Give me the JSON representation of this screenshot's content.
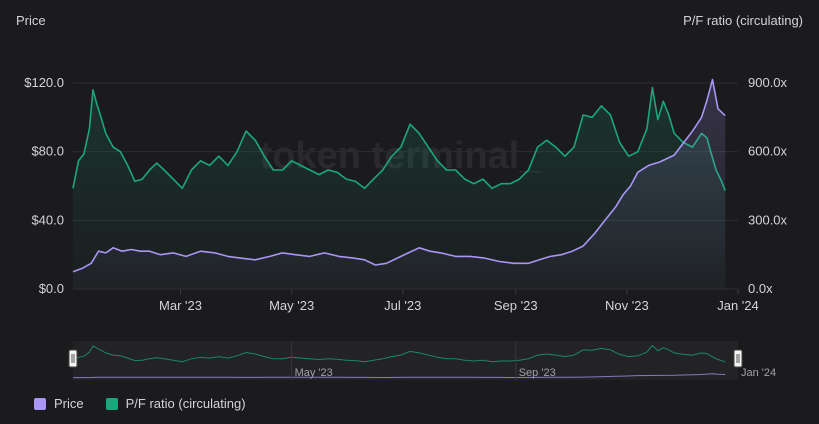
{
  "chart_data": {
    "type": "line",
    "watermark": "token terminal_",
    "y_left": {
      "title": "Price",
      "ticks": [
        "$0.0",
        "$40.0",
        "$80.0",
        "$120.0"
      ],
      "tick_values": [
        0,
        40,
        80,
        120
      ],
      "range": [
        0,
        120
      ]
    },
    "y_right": {
      "title": "P/F ratio (circulating)",
      "ticks": [
        "0.0x",
        "300.0x",
        "600.0x",
        "900.0x"
      ],
      "tick_values": [
        0,
        300,
        600,
        900
      ],
      "range": [
        0,
        900
      ]
    },
    "x_ticks": [
      "Mar '23",
      "May '23",
      "Jul '23",
      "Sep '23",
      "Nov '23",
      "Jan '24"
    ],
    "x_tick_days": [
      59,
      120,
      181,
      243,
      304,
      365
    ],
    "x_range_days": [
      0,
      365
    ],
    "navigator_ticks": [
      "May '23",
      "Sep '23",
      "Jan '24"
    ],
    "navigator_tick_days": [
      120,
      243,
      365
    ],
    "legend_position": "bottom-left",
    "grid": true,
    "series": [
      {
        "name": "Price",
        "axis": "left",
        "color": "#a995f5",
        "points": [
          [
            0,
            10
          ],
          [
            5,
            12
          ],
          [
            10,
            15
          ],
          [
            14,
            22
          ],
          [
            18,
            21
          ],
          [
            22,
            24
          ],
          [
            27,
            22
          ],
          [
            32,
            23
          ],
          [
            37,
            22
          ],
          [
            42,
            22
          ],
          [
            48,
            20
          ],
          [
            55,
            21
          ],
          [
            62,
            19
          ],
          [
            70,
            22
          ],
          [
            78,
            21
          ],
          [
            85,
            19
          ],
          [
            92,
            18
          ],
          [
            100,
            17
          ],
          [
            108,
            19
          ],
          [
            115,
            21
          ],
          [
            122,
            20
          ],
          [
            130,
            19
          ],
          [
            138,
            21
          ],
          [
            146,
            19
          ],
          [
            154,
            18
          ],
          [
            160,
            17
          ],
          [
            166,
            14
          ],
          [
            172,
            15
          ],
          [
            178,
            18
          ],
          [
            184,
            21
          ],
          [
            190,
            24
          ],
          [
            196,
            22
          ],
          [
            202,
            21
          ],
          [
            210,
            19
          ],
          [
            218,
            19
          ],
          [
            226,
            18
          ],
          [
            234,
            16
          ],
          [
            242,
            15
          ],
          [
            250,
            15
          ],
          [
            256,
            17
          ],
          [
            262,
            19
          ],
          [
            268,
            20
          ],
          [
            274,
            22
          ],
          [
            280,
            25
          ],
          [
            286,
            32
          ],
          [
            292,
            40
          ],
          [
            298,
            48
          ],
          [
            302,
            55
          ],
          [
            306,
            60
          ],
          [
            310,
            68
          ],
          [
            316,
            72
          ],
          [
            322,
            74
          ],
          [
            330,
            78
          ],
          [
            335,
            85
          ],
          [
            340,
            92
          ],
          [
            345,
            100
          ],
          [
            348,
            110
          ],
          [
            351,
            122
          ],
          [
            354,
            105
          ],
          [
            357,
            102
          ],
          [
            358,
            101
          ]
        ]
      },
      {
        "name": "P/F ratio (circulating)",
        "axis": "right",
        "color": "#1aa77b",
        "points": [
          [
            0,
            440
          ],
          [
            3,
            560
          ],
          [
            6,
            590
          ],
          [
            9,
            700
          ],
          [
            11,
            870
          ],
          [
            13,
            810
          ],
          [
            15,
            760
          ],
          [
            18,
            680
          ],
          [
            22,
            620
          ],
          [
            26,
            600
          ],
          [
            30,
            540
          ],
          [
            34,
            470
          ],
          [
            38,
            480
          ],
          [
            42,
            520
          ],
          [
            46,
            550
          ],
          [
            50,
            520
          ],
          [
            55,
            480
          ],
          [
            60,
            440
          ],
          [
            65,
            520
          ],
          [
            70,
            560
          ],
          [
            75,
            540
          ],
          [
            80,
            580
          ],
          [
            85,
            540
          ],
          [
            90,
            600
          ],
          [
            95,
            690
          ],
          [
            100,
            650
          ],
          [
            105,
            580
          ],
          [
            110,
            520
          ],
          [
            115,
            520
          ],
          [
            120,
            560
          ],
          [
            125,
            540
          ],
          [
            130,
            520
          ],
          [
            135,
            500
          ],
          [
            140,
            520
          ],
          [
            145,
            510
          ],
          [
            150,
            480
          ],
          [
            155,
            470
          ],
          [
            160,
            440
          ],
          [
            165,
            480
          ],
          [
            170,
            520
          ],
          [
            175,
            580
          ],
          [
            180,
            620
          ],
          [
            185,
            720
          ],
          [
            190,
            680
          ],
          [
            195,
            620
          ],
          [
            200,
            560
          ],
          [
            205,
            520
          ],
          [
            210,
            520
          ],
          [
            215,
            480
          ],
          [
            220,
            460
          ],
          [
            225,
            480
          ],
          [
            230,
            440
          ],
          [
            235,
            460
          ],
          [
            240,
            460
          ],
          [
            245,
            480
          ],
          [
            250,
            520
          ],
          [
            255,
            620
          ],
          [
            260,
            650
          ],
          [
            265,
            620
          ],
          [
            270,
            580
          ],
          [
            275,
            620
          ],
          [
            280,
            760
          ],
          [
            285,
            750
          ],
          [
            290,
            800
          ],
          [
            295,
            760
          ],
          [
            300,
            640
          ],
          [
            305,
            580
          ],
          [
            310,
            600
          ],
          [
            315,
            700
          ],
          [
            318,
            880
          ],
          [
            321,
            740
          ],
          [
            324,
            820
          ],
          [
            327,
            760
          ],
          [
            330,
            680
          ],
          [
            335,
            640
          ],
          [
            340,
            620
          ],
          [
            345,
            680
          ],
          [
            348,
            660
          ],
          [
            350,
            600
          ],
          [
            353,
            520
          ],
          [
            356,
            470
          ],
          [
            358,
            430
          ]
        ]
      }
    ]
  }
}
